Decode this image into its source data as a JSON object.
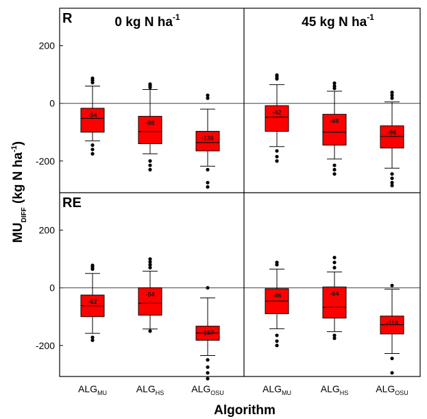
{
  "chart_data": {
    "type": "box",
    "xlabel": "Algorithm",
    "ylabel_main": "MU",
    "ylabel_sub": "DIFF",
    "ylabel_rest": " (kg N ha",
    "ylabel_sup": "-1",
    "ylabel_end": ")",
    "ylim": [
      -310,
      330
    ],
    "yticks": [
      200,
      0,
      -200
    ],
    "x_categories": [
      {
        "main": "ALG",
        "sub": "MU"
      },
      {
        "main": "ALG",
        "sub": "HS"
      },
      {
        "main": "ALG",
        "sub": "OSU"
      },
      {
        "main": "ALG",
        "sub": "MU"
      },
      {
        "main": "ALG",
        "sub": "HS"
      },
      {
        "main": "ALG",
        "sub": "OSU"
      }
    ],
    "columns": [
      {
        "title": "0 kg N ha",
        "title_sup": "-1"
      },
      {
        "title": "45 kg N ha",
        "title_sup": "-1"
      }
    ],
    "rows": [
      {
        "label": "R"
      },
      {
        "label": "RE"
      }
    ],
    "box_color": "#ff0000",
    "panels": [
      {
        "row": 0,
        "col": 0,
        "boxes": [
          {
            "label": "-54",
            "q1": -100,
            "median": -52,
            "q3": -17,
            "whisker_low": -130,
            "whisker_high": 60,
            "outliers": [
              72,
              80,
              87,
              -145,
              -160,
              -175
            ]
          },
          {
            "label": "-98",
            "q1": -140,
            "median": -98,
            "q3": -45,
            "whisker_low": -175,
            "whisker_high": 48,
            "outliers": [
              55,
              62,
              67,
              -200,
              -215,
              -230
            ]
          },
          {
            "label": "-136",
            "q1": -165,
            "median": -136,
            "q3": -97,
            "whisker_low": -218,
            "whisker_high": -20,
            "outliers": [
              18,
              28,
              -230,
              -275,
              -290
            ]
          }
        ]
      },
      {
        "row": 0,
        "col": 1,
        "boxes": [
          {
            "label": "-42",
            "q1": -97,
            "median": -48,
            "q3": -8,
            "whisker_low": -150,
            "whisker_high": 65,
            "outliers": [
              85,
              92,
              98,
              -165,
              -185,
              -200
            ]
          },
          {
            "label": "-88",
            "q1": -145,
            "median": -100,
            "q3": -38,
            "whisker_low": -193,
            "whisker_high": 42,
            "outliers": [
              52,
              60,
              70,
              -215,
              -230,
              -245
            ]
          },
          {
            "label": "-96",
            "q1": -155,
            "median": -115,
            "q3": -78,
            "whisker_low": -225,
            "whisker_high": 5,
            "outliers": [
              18,
              28,
              38,
              -245,
              -260,
              -275,
              -285
            ]
          }
        ]
      },
      {
        "row": 1,
        "col": 0,
        "boxes": [
          {
            "label": "-62",
            "q1": -100,
            "median": -62,
            "q3": -25,
            "whisker_low": -158,
            "whisker_high": 50,
            "outliers": [
              65,
              72,
              78,
              -172,
              -182
            ]
          },
          {
            "label": "-54",
            "q1": -95,
            "median": -54,
            "q3": 0,
            "whisker_low": -143,
            "whisker_high": 58,
            "outliers": [
              70,
              80,
              90,
              100,
              -150
            ]
          },
          {
            "label": "-157",
            "q1": -182,
            "median": -157,
            "q3": -133,
            "whisker_low": -235,
            "whisker_high": -35,
            "outliers": [
              0,
              -250,
              -275,
              -295,
              -315
            ]
          }
        ]
      },
      {
        "row": 1,
        "col": 1,
        "boxes": [
          {
            "label": "-46",
            "q1": -90,
            "median": -46,
            "q3": -3,
            "whisker_low": -142,
            "whisker_high": 65,
            "outliers": [
              80,
              88,
              -165,
              -185,
              -200
            ]
          },
          {
            "label": "-64",
            "q1": -105,
            "median": -68,
            "q3": 3,
            "whisker_low": -152,
            "whisker_high": 55,
            "outliers": [
              70,
              88,
              105,
              -165,
              -175
            ]
          },
          {
            "label": "-118",
            "q1": -160,
            "median": -128,
            "q3": -98,
            "whisker_low": -228,
            "whisker_high": -5,
            "outliers": [
              8,
              -245,
              -295
            ]
          }
        ]
      }
    ]
  }
}
